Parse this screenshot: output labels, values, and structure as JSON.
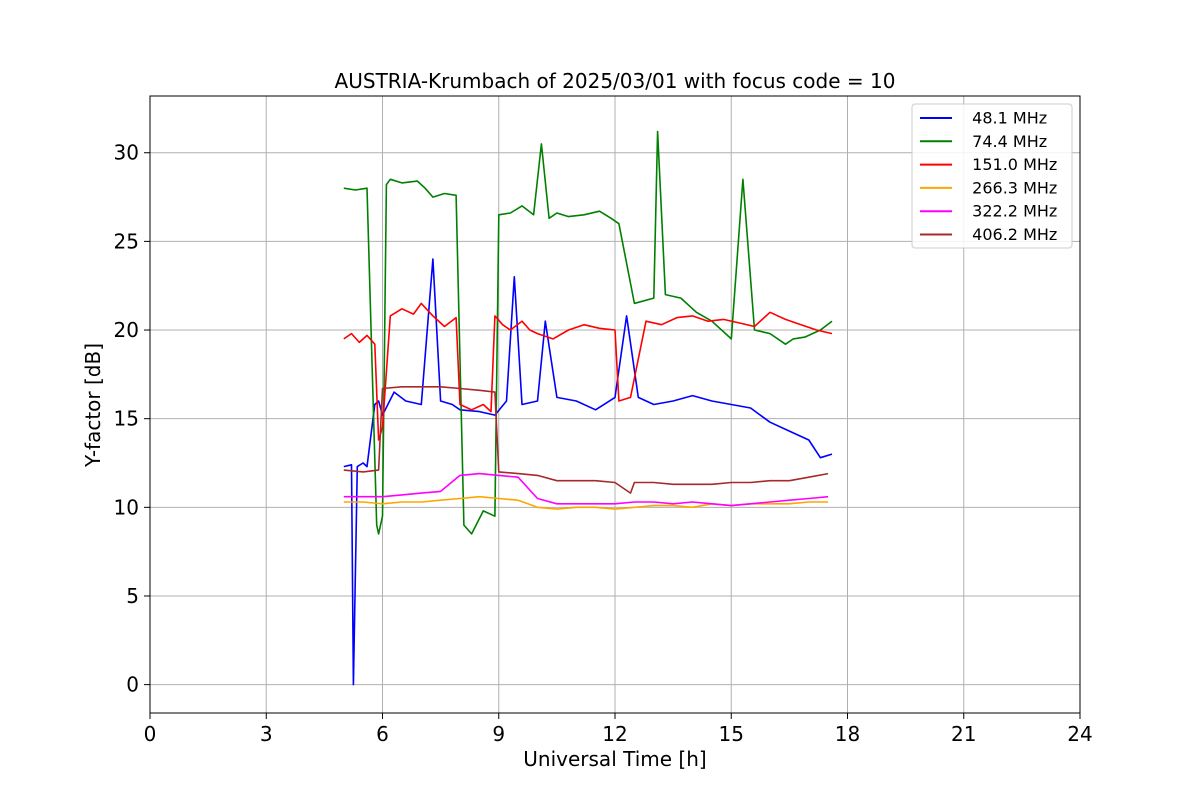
{
  "chart_data": {
    "type": "line",
    "title": "AUSTRIA-Krumbach of 2025/03/01 with focus code = 10",
    "xlabel": "Universal Time [h]",
    "ylabel": "Y-factor [dB]",
    "xlim": [
      0,
      24
    ],
    "ylim": [
      -1.6,
      33.2
    ],
    "xticks": [
      0,
      3,
      6,
      9,
      12,
      15,
      18,
      21,
      24
    ],
    "yticks": [
      0,
      5,
      10,
      15,
      20,
      25,
      30
    ],
    "grid": true,
    "legend_position": "top-right",
    "series": [
      {
        "name": "  48.1 MHz",
        "color": "#0000ff",
        "x": [
          5.0,
          5.2,
          5.25,
          5.35,
          5.5,
          5.6,
          5.8,
          5.9,
          6.0,
          6.3,
          6.6,
          7.0,
          7.3,
          7.5,
          7.8,
          8.0,
          8.5,
          8.9,
          9.2,
          9.4,
          9.6,
          10.0,
          10.2,
          10.5,
          11.0,
          11.5,
          12.0,
          12.3,
          12.6,
          13.0,
          13.5,
          14.0,
          14.5,
          15.0,
          15.5,
          16.0,
          16.5,
          17.0,
          17.3,
          17.6
        ],
        "y": [
          12.3,
          12.4,
          0.0,
          12.3,
          12.5,
          12.3,
          15.8,
          16.0,
          15.2,
          16.5,
          16.0,
          15.8,
          24.0,
          16.0,
          15.8,
          15.5,
          15.4,
          15.2,
          16.0,
          23.0,
          15.8,
          16.0,
          20.5,
          16.2,
          16.0,
          15.5,
          16.2,
          20.8,
          16.2,
          15.8,
          16.0,
          16.3,
          16.0,
          15.8,
          15.6,
          14.8,
          14.3,
          13.8,
          12.8,
          13.0
        ]
      },
      {
        "name": "  74.4 MHz",
        "color": "#008000",
        "x": [
          5.0,
          5.3,
          5.6,
          5.85,
          5.9,
          6.0,
          6.1,
          6.2,
          6.5,
          6.9,
          7.1,
          7.3,
          7.6,
          7.9,
          8.1,
          8.3,
          8.6,
          8.9,
          9.0,
          9.3,
          9.6,
          9.9,
          10.1,
          10.3,
          10.5,
          10.8,
          11.2,
          11.6,
          11.9,
          12.1,
          12.5,
          13.0,
          13.1,
          13.3,
          13.7,
          14.1,
          14.5,
          15.0,
          15.3,
          15.6,
          16.0,
          16.4,
          16.6,
          16.9,
          17.3,
          17.6
        ],
        "y": [
          28.0,
          27.9,
          28.0,
          9.0,
          8.5,
          9.5,
          28.2,
          28.5,
          28.3,
          28.4,
          28.0,
          27.5,
          27.7,
          27.6,
          9.0,
          8.5,
          9.8,
          9.5,
          26.5,
          26.6,
          27.0,
          26.5,
          30.5,
          26.3,
          26.6,
          26.4,
          26.5,
          26.7,
          26.3,
          26.0,
          21.5,
          21.8,
          31.2,
          22.0,
          21.8,
          21.0,
          20.5,
          19.5,
          28.5,
          20.0,
          19.8,
          19.2,
          19.5,
          19.6,
          20.0,
          20.5
        ]
      },
      {
        "name": "  151.0 MHz",
        "color": "#ff0000",
        "x": [
          5.0,
          5.2,
          5.4,
          5.6,
          5.8,
          5.9,
          6.0,
          6.2,
          6.5,
          6.8,
          7.0,
          7.3,
          7.6,
          7.9,
          8.0,
          8.3,
          8.6,
          8.8,
          8.9,
          9.1,
          9.3,
          9.6,
          9.8,
          10.0,
          10.4,
          10.8,
          11.2,
          11.6,
          12.0,
          12.1,
          12.4,
          12.8,
          13.2,
          13.6,
          14.0,
          14.4,
          14.8,
          15.2,
          15.6,
          16.0,
          16.4,
          16.8,
          17.2,
          17.6
        ],
        "y": [
          19.5,
          19.8,
          19.3,
          19.7,
          19.2,
          13.8,
          14.5,
          20.8,
          21.2,
          20.9,
          21.5,
          20.8,
          20.2,
          20.7,
          15.8,
          15.5,
          15.8,
          15.4,
          20.8,
          20.3,
          20.0,
          20.5,
          20.0,
          19.8,
          19.5,
          20.0,
          20.3,
          20.1,
          20.0,
          16.0,
          16.2,
          20.5,
          20.3,
          20.7,
          20.8,
          20.5,
          20.6,
          20.4,
          20.2,
          21.0,
          20.6,
          20.3,
          20.0,
          19.8
        ]
      },
      {
        "name": "  266.3 MHz",
        "color": "#ffa500",
        "x": [
          5.0,
          5.5,
          6.0,
          6.5,
          7.0,
          7.5,
          8.0,
          8.5,
          9.0,
          9.5,
          10.0,
          10.5,
          11.0,
          11.5,
          12.0,
          12.5,
          13.0,
          13.5,
          14.0,
          14.5,
          15.0,
          15.5,
          16.0,
          16.5,
          17.0,
          17.5
        ],
        "y": [
          10.3,
          10.3,
          10.2,
          10.3,
          10.3,
          10.4,
          10.5,
          10.6,
          10.5,
          10.4,
          10.0,
          9.9,
          10.0,
          10.0,
          9.9,
          10.0,
          10.1,
          10.1,
          10.0,
          10.2,
          10.1,
          10.2,
          10.2,
          10.2,
          10.3,
          10.3
        ]
      },
      {
        "name": "  322.2 MHz",
        "color": "#ff00ff",
        "x": [
          5.0,
          5.5,
          6.0,
          6.5,
          7.0,
          7.5,
          8.0,
          8.5,
          9.0,
          9.5,
          10.0,
          10.5,
          11.0,
          11.5,
          12.0,
          12.5,
          13.0,
          13.5,
          14.0,
          14.5,
          15.0,
          15.5,
          16.0,
          16.5,
          17.0,
          17.5
        ],
        "y": [
          10.6,
          10.6,
          10.6,
          10.7,
          10.8,
          10.9,
          11.8,
          11.9,
          11.8,
          11.7,
          10.5,
          10.2,
          10.2,
          10.2,
          10.2,
          10.3,
          10.3,
          10.2,
          10.3,
          10.2,
          10.1,
          10.2,
          10.3,
          10.4,
          10.5,
          10.6
        ]
      },
      {
        "name": "  406.2 MHz",
        "color": "#a52a2a",
        "x": [
          5.0,
          5.5,
          5.9,
          6.0,
          6.5,
          7.0,
          7.5,
          8.0,
          8.5,
          8.9,
          9.0,
          9.5,
          10.0,
          10.5,
          11.0,
          11.5,
          12.0,
          12.4,
          12.5,
          13.0,
          13.5,
          14.0,
          14.5,
          15.0,
          15.5,
          16.0,
          16.5,
          17.0,
          17.5
        ],
        "y": [
          12.1,
          12.0,
          12.1,
          16.7,
          16.8,
          16.8,
          16.8,
          16.7,
          16.6,
          16.5,
          12.0,
          11.9,
          11.8,
          11.5,
          11.5,
          11.5,
          11.4,
          10.8,
          11.4,
          11.4,
          11.3,
          11.3,
          11.3,
          11.4,
          11.4,
          11.5,
          11.5,
          11.7,
          11.9
        ]
      }
    ]
  }
}
